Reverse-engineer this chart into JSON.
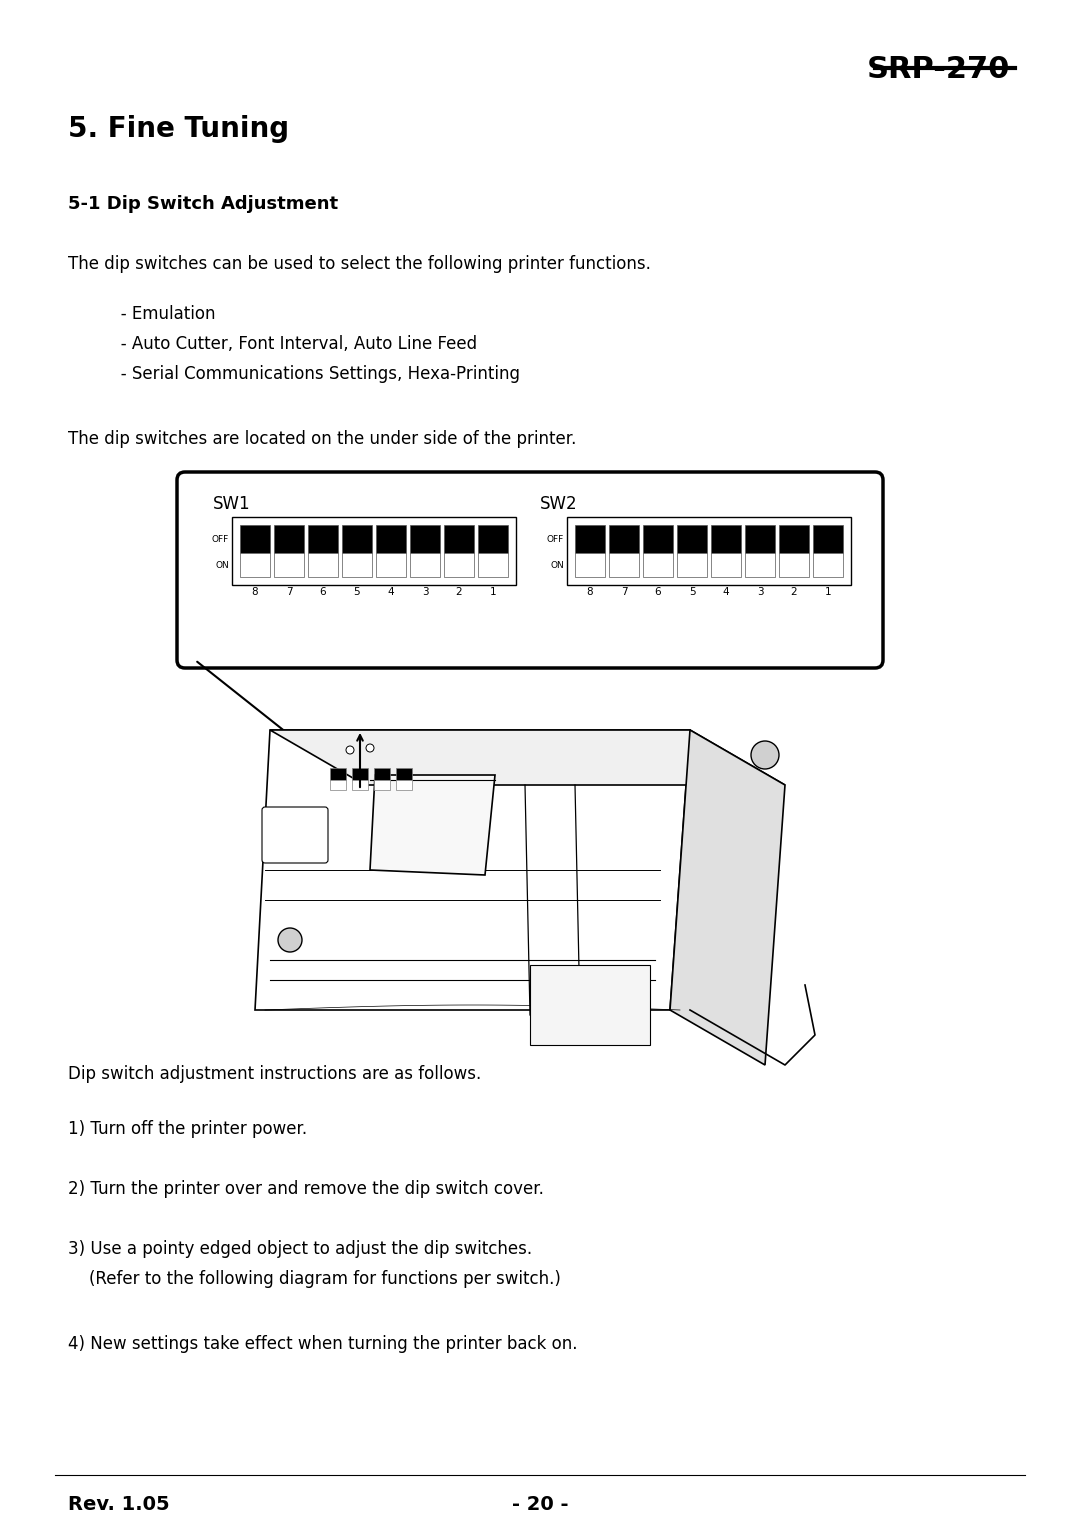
{
  "title_header": "SRP-270",
  "section_title": "5. Fine Tuning",
  "subsection_title": "5-1 Dip Switch Adjustment",
  "para1": "The dip switches can be used to select the following printer functions.",
  "bullet1": "   - Emulation",
  "bullet2": "   - Auto Cutter, Font Interval, Auto Line Feed",
  "bullet3": "   - Serial Communications Settings, Hexa-Printing",
  "para2": "The dip switches are located on the under side of the printer.",
  "sw1_label": "SW1",
  "sw2_label": "SW2",
  "instructions_header": "Dip switch adjustment instructions are as follows.",
  "instr1": "1) Turn off the printer power.",
  "instr2": "2) Turn the printer over and remove the dip switch cover.",
  "instr3a": "3) Use a pointy edged object to adjust the dip switches.",
  "instr3b": "    (Refer to the following diagram for functions per switch.)",
  "instr4": "4) New settings take effect when turning the printer back on.",
  "footer_left": "Rev. 1.05",
  "footer_center": "- 20 -",
  "bg_color": "#ffffff",
  "text_color": "#000000"
}
